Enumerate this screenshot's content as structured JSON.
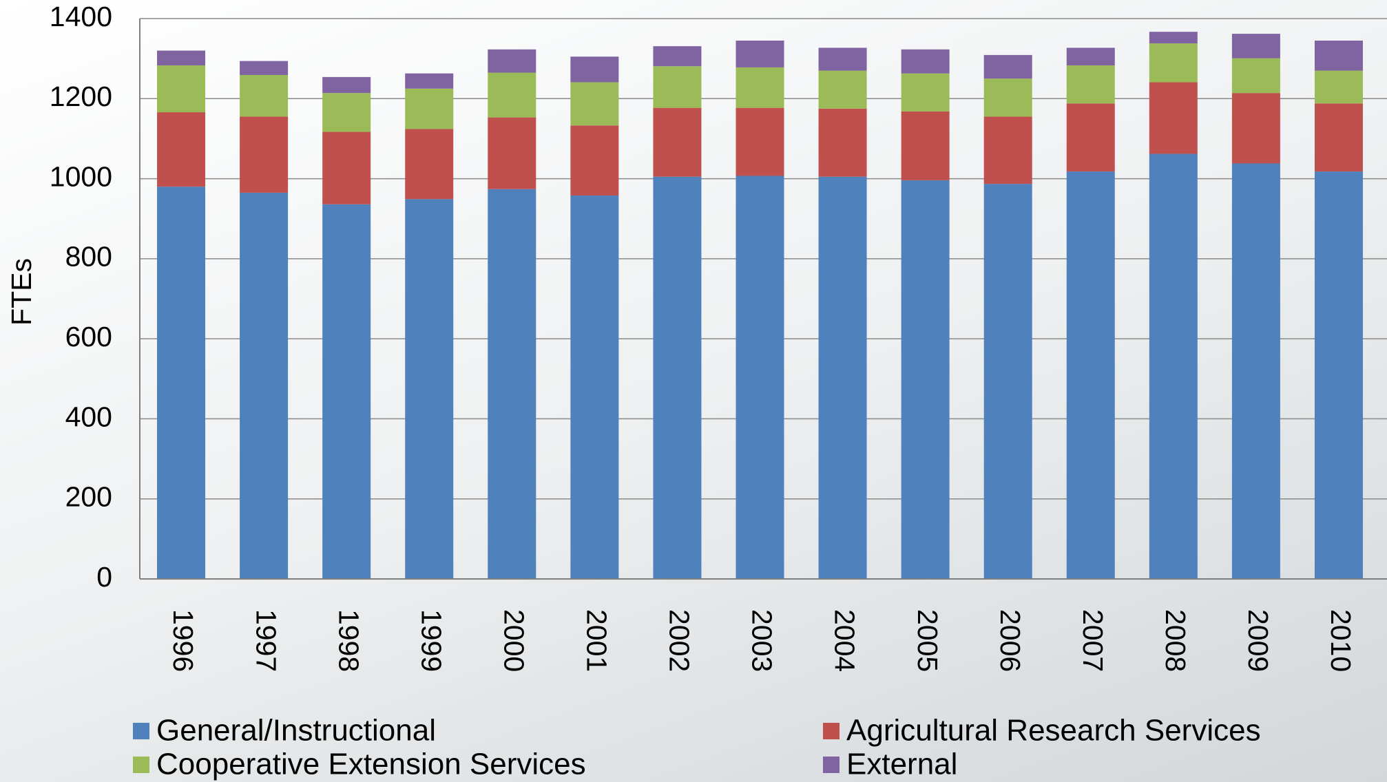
{
  "chart_data": {
    "type": "stacked-bar",
    "y_label": "FTEs",
    "categories": [
      "1996",
      "1997",
      "1998",
      "1999",
      "2000",
      "2001",
      "2002",
      "2003",
      "2004",
      "2005",
      "2006",
      "2007",
      "2008",
      "2009",
      "2010"
    ],
    "series": [
      {
        "name": "General/Instructional",
        "color": "#4f81bd",
        "values": [
          980,
          965,
          936,
          949,
          974,
          958,
          1005,
          1007,
          1005,
          996,
          987,
          1018,
          1062,
          1038,
          1018
        ]
      },
      {
        "name": "Agricultural Research Services",
        "color": "#c0504d",
        "values": [
          186,
          190,
          181,
          175,
          179,
          175,
          172,
          170,
          170,
          172,
          168,
          170,
          179,
          176,
          170
        ]
      },
      {
        "name": "Cooperative Extension Services",
        "color": "#9bbb59",
        "values": [
          117,
          104,
          97,
          101,
          112,
          108,
          104,
          101,
          95,
          95,
          95,
          95,
          97,
          87,
          82
        ]
      },
      {
        "name": "External",
        "color": "#8064a2",
        "values": [
          37,
          35,
          40,
          38,
          58,
          64,
          50,
          67,
          57,
          60,
          59,
          44,
          29,
          61,
          75
        ]
      }
    ],
    "ylim": [
      0,
      1400
    ],
    "yticks": [
      0,
      200,
      400,
      600,
      800,
      1000,
      1200,
      1400
    ],
    "grid": true,
    "legend": "bottom"
  }
}
